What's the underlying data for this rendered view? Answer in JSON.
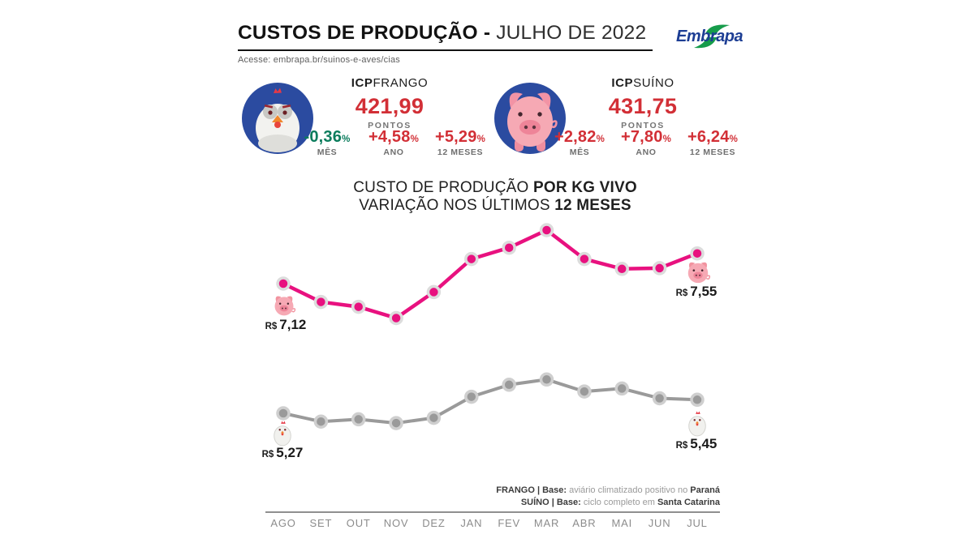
{
  "header": {
    "title_bold": "CUSTOS DE PRODUÇÃO -",
    "title_light": " JULHO DE 2022",
    "access_line": "Acesse: embrapa.br/suinos-e-aves/cias",
    "logo_text": "Embrapa",
    "logo_blue": "#1d3e94",
    "logo_green": "#169c4b"
  },
  "indices": [
    {
      "id": "frango",
      "name_bold": "ICP",
      "name_rest": "FRANGO",
      "points_value": "421,99",
      "points_label": "PONTOS",
      "metrics": [
        {
          "value": "-0,36",
          "pct": "%",
          "label": "MÊS",
          "color": "#0a7c5c"
        },
        {
          "value": "+4,58",
          "pct": "%",
          "label": "ANO",
          "color": "#d22f36"
        },
        {
          "value": "+5,29",
          "pct": "%",
          "label": "12 MESES",
          "color": "#d22f36"
        }
      ]
    },
    {
      "id": "suino",
      "name_bold": "ICP",
      "name_rest": "SUÍNO",
      "points_value": "431,75",
      "points_label": "PONTOS",
      "metrics": [
        {
          "value": "+2,82",
          "pct": "%",
          "label": "MÊS",
          "color": "#d22f36"
        },
        {
          "value": "+7,80",
          "pct": "%",
          "label": "ANO",
          "color": "#d22f36"
        },
        {
          "value": "+6,24",
          "pct": "%",
          "label": "12 MESES",
          "color": "#d22f36"
        }
      ]
    }
  ],
  "chart": {
    "title_light": "CUSTO DE PRODUÇÃO ",
    "title_bold": "POR KG VIVO",
    "subtitle_light": "VARIAÇÃO NOS ÚLTIMOS ",
    "subtitle_bold": "12 MESES",
    "currency_prefix": "R$",
    "endpoints": [
      {
        "series": "suino",
        "pos": "start",
        "value": "7,12"
      },
      {
        "series": "suino",
        "pos": "end",
        "value": "7,55"
      },
      {
        "series": "frango",
        "pos": "start",
        "value": "5,27"
      },
      {
        "series": "frango",
        "pos": "end",
        "value": "5,45"
      }
    ]
  },
  "chart_data": {
    "type": "line",
    "title": "CUSTO DE PRODUÇÃO POR KG VIVO — VARIAÇÃO NOS ÚLTIMOS 12 MESES",
    "categories": [
      "AGO",
      "SET",
      "OUT",
      "NOV",
      "DEZ",
      "JAN",
      "FEV",
      "MAR",
      "ABR",
      "MAI",
      "JUN",
      "JUL"
    ],
    "series": [
      {
        "name": "Suíno (R$/kg vivo)",
        "color": "#e8117f",
        "values": [
          7.12,
          6.86,
          6.79,
          6.63,
          7.0,
          7.47,
          7.63,
          7.88,
          7.47,
          7.33,
          7.34,
          7.55
        ],
        "start_label": "R$ 7,12",
        "end_label": "R$ 7,55"
      },
      {
        "name": "Frango (R$/kg vivo)",
        "color": "#9a9a9a",
        "values": [
          5.27,
          5.16,
          5.19,
          5.14,
          5.21,
          5.49,
          5.65,
          5.72,
          5.56,
          5.6,
          5.47,
          5.45
        ],
        "start_label": "R$ 5,27",
        "end_label": "R$ 5,45"
      }
    ],
    "legend_position": "none",
    "grid": false,
    "ylim": [
      5.0,
      8.0
    ]
  },
  "footer": {
    "line1": {
      "bold_prefix": "FRANGO | Base: ",
      "normal": "aviário climatizado positivo no ",
      "bold_suffix": "Paraná"
    },
    "line2": {
      "bold_prefix": "SUÍNO | Base: ",
      "normal": "ciclo completo em ",
      "bold_suffix": "Santa Catarina"
    }
  }
}
